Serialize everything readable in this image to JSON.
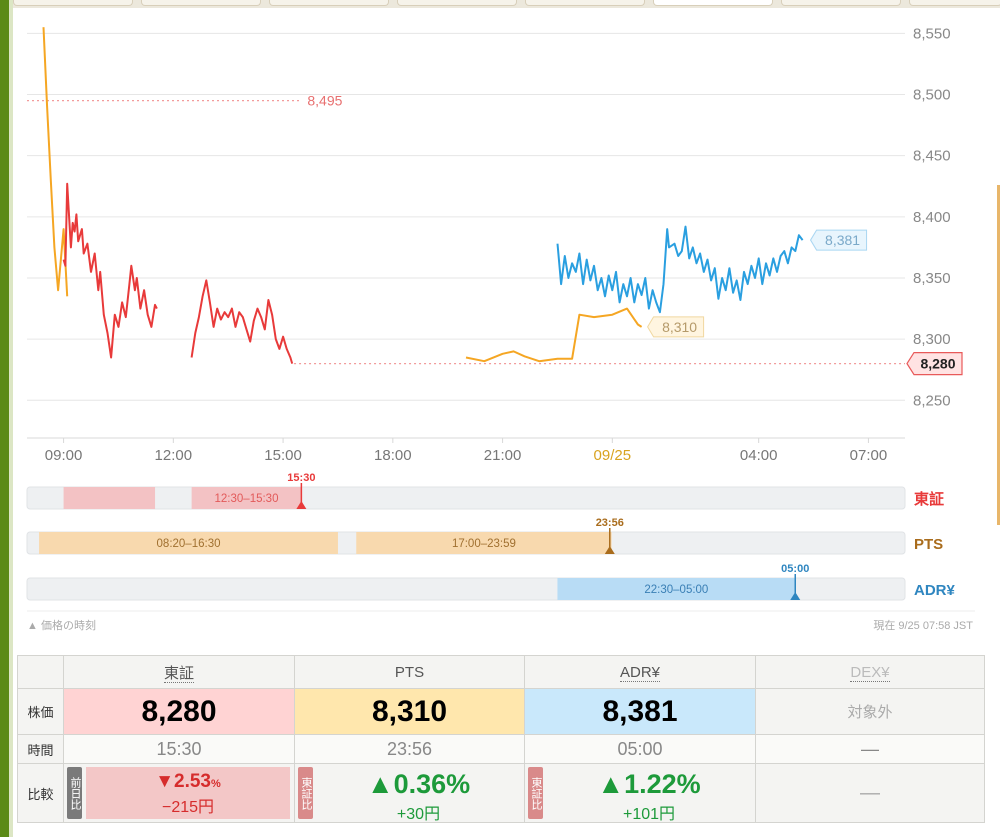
{
  "chart_data": {
    "type": "line",
    "x_unit": "hours since 09:00 JST (trading day)",
    "x_ticks": [
      "09:00",
      "12:00",
      "15:00",
      "18:00",
      "21:00",
      "09/25",
      "04:00",
      "07:00"
    ],
    "y_ticks": [
      "8,550",
      "8,500",
      "8,450",
      "8,400",
      "8,350",
      "8,300",
      "8,250"
    ],
    "ylim": [
      8220,
      8565
    ],
    "xlim": [
      -1.0,
      23.0
    ],
    "reference_line": {
      "value": 8495,
      "label": "8,495"
    },
    "last_tse_line": {
      "value": 8280
    },
    "series": [
      {
        "name": "東証",
        "color": "#e83a3a",
        "segments": [
          [
            [
              0.0,
              8365
            ],
            [
              0.05,
              8360
            ],
            [
              0.1,
              8427
            ],
            [
              0.15,
              8400
            ],
            [
              0.2,
              8375
            ],
            [
              0.25,
              8395
            ],
            [
              0.3,
              8388
            ],
            [
              0.35,
              8402
            ],
            [
              0.4,
              8380
            ],
            [
              0.5,
              8390
            ],
            [
              0.55,
              8370
            ],
            [
              0.65,
              8378
            ],
            [
              0.75,
              8355
            ],
            [
              0.85,
              8370
            ],
            [
              0.95,
              8340
            ],
            [
              1.0,
              8355
            ],
            [
              1.1,
              8320
            ],
            [
              1.2,
              8305
            ],
            [
              1.3,
              8285
            ],
            [
              1.4,
              8320
            ],
            [
              1.5,
              8310
            ],
            [
              1.6,
              8330
            ],
            [
              1.7,
              8318
            ],
            [
              1.8,
              8345
            ],
            [
              1.85,
              8360
            ],
            [
              1.95,
              8340
            ],
            [
              2.0,
              8350
            ],
            [
              2.1,
              8325
            ],
            [
              2.2,
              8340
            ],
            [
              2.3,
              8320
            ],
            [
              2.4,
              8310
            ],
            [
              2.5,
              8328
            ],
            [
              2.55,
              8325
            ]
          ],
          [
            [
              3.5,
              8285
            ],
            [
              3.6,
              8305
            ],
            [
              3.7,
              8318
            ],
            [
              3.8,
              8335
            ],
            [
              3.9,
              8348
            ],
            [
              4.0,
              8330
            ],
            [
              4.1,
              8310
            ],
            [
              4.2,
              8325
            ],
            [
              4.3,
              8316
            ],
            [
              4.4,
              8322
            ],
            [
              4.5,
              8318
            ],
            [
              4.6,
              8325
            ],
            [
              4.7,
              8310
            ],
            [
              4.8,
              8322
            ],
            [
              4.9,
              8318
            ],
            [
              5.0,
              8308
            ],
            [
              5.1,
              8298
            ],
            [
              5.2,
              8315
            ],
            [
              5.3,
              8325
            ],
            [
              5.4,
              8318
            ],
            [
              5.5,
              8308
            ],
            [
              5.6,
              8332
            ],
            [
              5.7,
              8320
            ],
            [
              5.8,
              8300
            ],
            [
              5.9,
              8292
            ],
            [
              6.0,
              8302
            ],
            [
              6.1,
              8292
            ],
            [
              6.2,
              8285
            ],
            [
              6.25,
              8280
            ]
          ]
        ]
      },
      {
        "name": "PTS",
        "color": "#f5a623",
        "segments": [
          [
            [
              -0.55,
              8555
            ],
            [
              -0.45,
              8490
            ],
            [
              -0.35,
              8430
            ],
            [
              -0.25,
              8375
            ],
            [
              -0.15,
              8340
            ],
            [
              0.0,
              8390
            ],
            [
              0.1,
              8335
            ]
          ],
          [
            [
              11.0,
              8285
            ],
            [
              11.5,
              8282
            ],
            [
              12.0,
              8288
            ],
            [
              12.3,
              8290
            ],
            [
              12.6,
              8286
            ],
            [
              13.0,
              8282
            ],
            [
              13.5,
              8284
            ],
            [
              13.9,
              8284
            ],
            [
              14.1,
              8320
            ],
            [
              14.5,
              8318
            ],
            [
              15.0,
              8320
            ],
            [
              15.4,
              8325
            ],
            [
              15.7,
              8312
            ],
            [
              15.8,
              8310
            ]
          ]
        ]
      },
      {
        "name": "ADR¥",
        "color": "#2a9fe0",
        "segments": [
          [
            [
              13.5,
              8378
            ],
            [
              13.6,
              8345
            ],
            [
              13.7,
              8368
            ],
            [
              13.8,
              8350
            ],
            [
              13.9,
              8362
            ],
            [
              14.0,
              8355
            ],
            [
              14.1,
              8370
            ],
            [
              14.2,
              8345
            ],
            [
              14.3,
              8365
            ],
            [
              14.4,
              8348
            ],
            [
              14.5,
              8360
            ],
            [
              14.6,
              8340
            ],
            [
              14.7,
              8350
            ],
            [
              14.8,
              8335
            ],
            [
              14.9,
              8352
            ],
            [
              15.0,
              8340
            ],
            [
              15.1,
              8355
            ],
            [
              15.2,
              8330
            ],
            [
              15.3,
              8345
            ],
            [
              15.4,
              8335
            ],
            [
              15.5,
              8350
            ],
            [
              15.6,
              8330
            ],
            [
              15.7,
              8345
            ],
            [
              15.8,
              8336
            ],
            [
              15.9,
              8350
            ],
            [
              16.0,
              8325
            ],
            [
              16.1,
              8340
            ],
            [
              16.2,
              8330
            ],
            [
              16.3,
              8322
            ],
            [
              16.4,
              8345
            ],
            [
              16.5,
              8390
            ],
            [
              16.55,
              8375
            ],
            [
              16.7,
              8378
            ],
            [
              16.8,
              8368
            ],
            [
              16.9,
              8372
            ],
            [
              17.0,
              8392
            ],
            [
              17.1,
              8366
            ],
            [
              17.2,
              8375
            ],
            [
              17.3,
              8362
            ],
            [
              17.4,
              8370
            ],
            [
              17.5,
              8355
            ],
            [
              17.6,
              8365
            ],
            [
              17.7,
              8348
            ],
            [
              17.8,
              8358
            ],
            [
              17.9,
              8333
            ],
            [
              18.0,
              8350
            ],
            [
              18.1,
              8340
            ],
            [
              18.2,
              8358
            ],
            [
              18.3,
              8338
            ],
            [
              18.4,
              8348
            ],
            [
              18.5,
              8332
            ],
            [
              18.6,
              8355
            ],
            [
              18.7,
              8345
            ],
            [
              18.8,
              8360
            ],
            [
              18.9,
              8350
            ],
            [
              19.0,
              8366
            ],
            [
              19.1,
              8345
            ],
            [
              19.2,
              8362
            ],
            [
              19.3,
              8352
            ],
            [
              19.4,
              8366
            ],
            [
              19.5,
              8355
            ],
            [
              19.6,
              8368
            ],
            [
              19.7,
              8372
            ],
            [
              19.8,
              8362
            ],
            [
              19.9,
              8375
            ],
            [
              20.0,
              8372
            ],
            [
              20.1,
              8385
            ],
            [
              20.2,
              8381
            ]
          ]
        ]
      }
    ],
    "end_labels": [
      {
        "series": "ADR¥",
        "label": "8,381",
        "value": 8381
      },
      {
        "series": "PTS",
        "label": "8,310",
        "value": 8310
      },
      {
        "series": "東証",
        "label": "8,280",
        "value": 8280
      }
    ],
    "session_rows": [
      {
        "name": "東証",
        "color": "#e83a3a",
        "fill": "#f3c2c4",
        "text_color": "#e25a5a",
        "blocks": [
          {
            "start": 0.0,
            "end": 2.5,
            "label": ""
          },
          {
            "start": 3.5,
            "end": 6.5,
            "label": "12:30–15:30"
          }
        ],
        "marker": {
          "at": 6.5,
          "label": "15:30"
        }
      },
      {
        "name": "PTS",
        "color": "#a96c1c",
        "fill": "#f8d9ae",
        "text_color": "#a07030",
        "blocks": [
          {
            "start": -0.67,
            "end": 7.5,
            "label": "08:20–16:30"
          },
          {
            "start": 8.0,
            "end": 14.98,
            "label": "17:00–23:59"
          }
        ],
        "marker": {
          "at": 14.93,
          "label": "23:56"
        }
      },
      {
        "name": "ADR¥",
        "color": "#2f86c0",
        "fill": "#b8dcf5",
        "text_color": "#3a7fb5",
        "blocks": [
          {
            "start": 13.5,
            "end": 20.0,
            "label": "22:30–05:00"
          }
        ],
        "marker": {
          "at": 20.0,
          "label": "05:00"
        }
      }
    ]
  },
  "notes": {
    "left": "▲ 価格の時刻",
    "right": "現在 9/25 07:58 JST"
  },
  "table": {
    "headers": [
      "東証",
      "PTS",
      "ADR¥",
      "DEX¥"
    ],
    "row_labels": {
      "price": "株価",
      "time": "時間",
      "compare": "比較"
    },
    "price": {
      "tse": "8,280",
      "pts": "8,310",
      "adr": "8,381",
      "dex": "対象外"
    },
    "time": {
      "tse": "15:30",
      "pts": "23:56",
      "adr": "05:00",
      "dex": "—"
    },
    "compare": {
      "tse": {
        "badge": "前日比",
        "arrow": "▼",
        "pct": "2.53",
        "pct_unit": "%",
        "yen": "−215円"
      },
      "pts": {
        "badge": "東証比",
        "arrow": "▲",
        "pct": "0.36%",
        "yen": "+30円"
      },
      "adr": {
        "badge": "東証比",
        "arrow": "▲",
        "pct": "1.22%",
        "yen": "+101円"
      },
      "dex": "—"
    }
  }
}
